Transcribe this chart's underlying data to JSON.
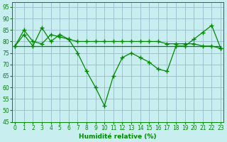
{
  "line1_x": [
    0,
    1,
    2,
    3,
    4,
    5,
    6,
    7,
    8,
    9,
    10,
    11,
    12,
    13,
    14,
    15,
    16,
    17,
    18,
    19,
    20,
    21,
    22,
    23
  ],
  "line1_y": [
    78,
    83,
    78,
    86,
    80,
    83,
    81,
    75,
    67,
    60,
    52,
    65,
    73,
    75,
    73,
    71,
    68,
    67,
    78,
    78,
    81,
    84,
    87,
    77
  ],
  "line2_x": [
    0,
    1,
    2,
    3,
    4,
    5,
    6,
    7,
    8,
    9,
    10,
    11,
    12,
    13,
    14,
    15,
    16,
    17,
    18,
    19,
    20,
    21,
    22,
    23
  ],
  "line2_y": [
    78,
    85,
    80,
    79,
    83,
    82,
    81,
    80,
    80,
    80,
    80,
    80,
    80,
    80,
    80,
    80,
    80,
    79,
    79,
    79,
    79,
    78,
    78,
    77
  ],
  "line3_x": [
    0,
    1,
    2,
    3,
    4,
    5,
    6,
    7,
    8,
    9,
    10,
    11,
    12,
    13,
    14,
    15,
    16,
    17,
    18,
    19,
    20,
    21,
    22,
    23
  ],
  "line3_y": [
    78,
    78,
    78,
    78,
    78,
    78,
    78,
    78,
    78,
    78,
    78,
    78,
    78,
    78,
    78,
    78,
    78,
    78,
    78,
    78,
    78,
    78,
    78,
    78
  ],
  "line_color": "#008800",
  "bg_color": "#c8eef0",
  "grid_color": "#99bbcc",
  "xlabel": "Humidité relative (%)",
  "xlim": [
    0,
    23
  ],
  "ylim": [
    45,
    97
  ],
  "yticks": [
    45,
    50,
    55,
    60,
    65,
    70,
    75,
    80,
    85,
    90,
    95
  ],
  "xticks": [
    0,
    1,
    2,
    3,
    4,
    5,
    6,
    7,
    8,
    9,
    10,
    11,
    12,
    13,
    14,
    15,
    16,
    17,
    18,
    19,
    20,
    21,
    22,
    23
  ],
  "marker": "+",
  "markersize": 4
}
